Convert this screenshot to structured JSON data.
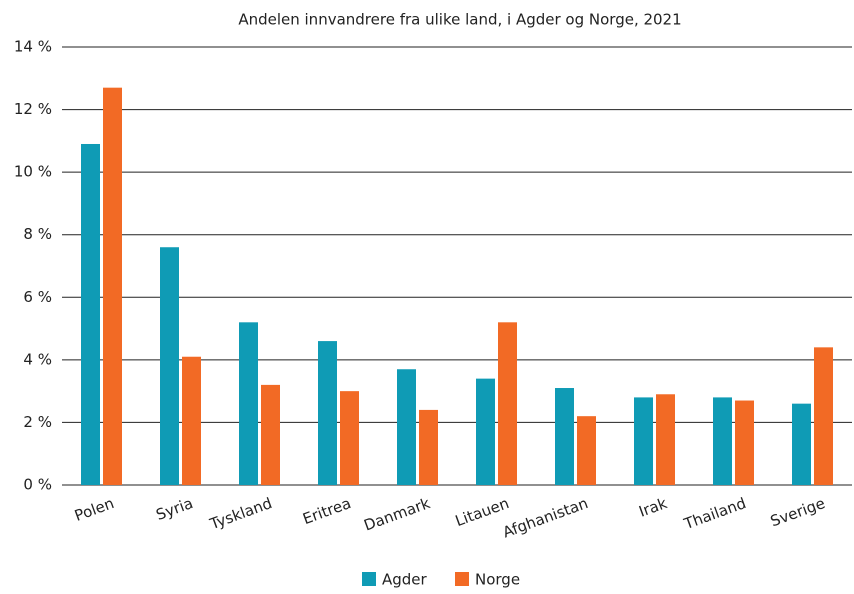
{
  "chart_data": {
    "type": "bar",
    "title": "Andelen innvandrere fra ulike land, i Agder og Norge, 2021",
    "categories": [
      "Polen",
      "Syria",
      "Tyskland",
      "Eritrea",
      "Danmark",
      "Litauen",
      "Afghanistan",
      "Irak",
      "Thailand",
      "Sverige"
    ],
    "series": [
      {
        "name": "Agder",
        "color": "#0f9bb5",
        "values": [
          10.9,
          7.6,
          5.2,
          4.6,
          3.7,
          3.4,
          3.1,
          2.8,
          2.8,
          2.6
        ]
      },
      {
        "name": "Norge",
        "color": "#f26a25",
        "values": [
          12.7,
          4.1,
          3.2,
          3.0,
          2.4,
          5.2,
          2.2,
          2.9,
          2.7,
          4.4
        ]
      }
    ],
    "ylim": [
      0,
      14
    ],
    "yticks": [
      {
        "value": 0,
        "label": "0 %"
      },
      {
        "value": 2,
        "label": "2 %"
      },
      {
        "value": 4,
        "label": "4 %"
      },
      {
        "value": 6,
        "label": "6 %"
      },
      {
        "value": 8,
        "label": "8 %"
      },
      {
        "value": 10,
        "label": "10 %"
      },
      {
        "value": 12,
        "label": "12 %"
      },
      {
        "value": 14,
        "label": "14 %"
      }
    ],
    "grid": true,
    "legend": "bottom"
  }
}
